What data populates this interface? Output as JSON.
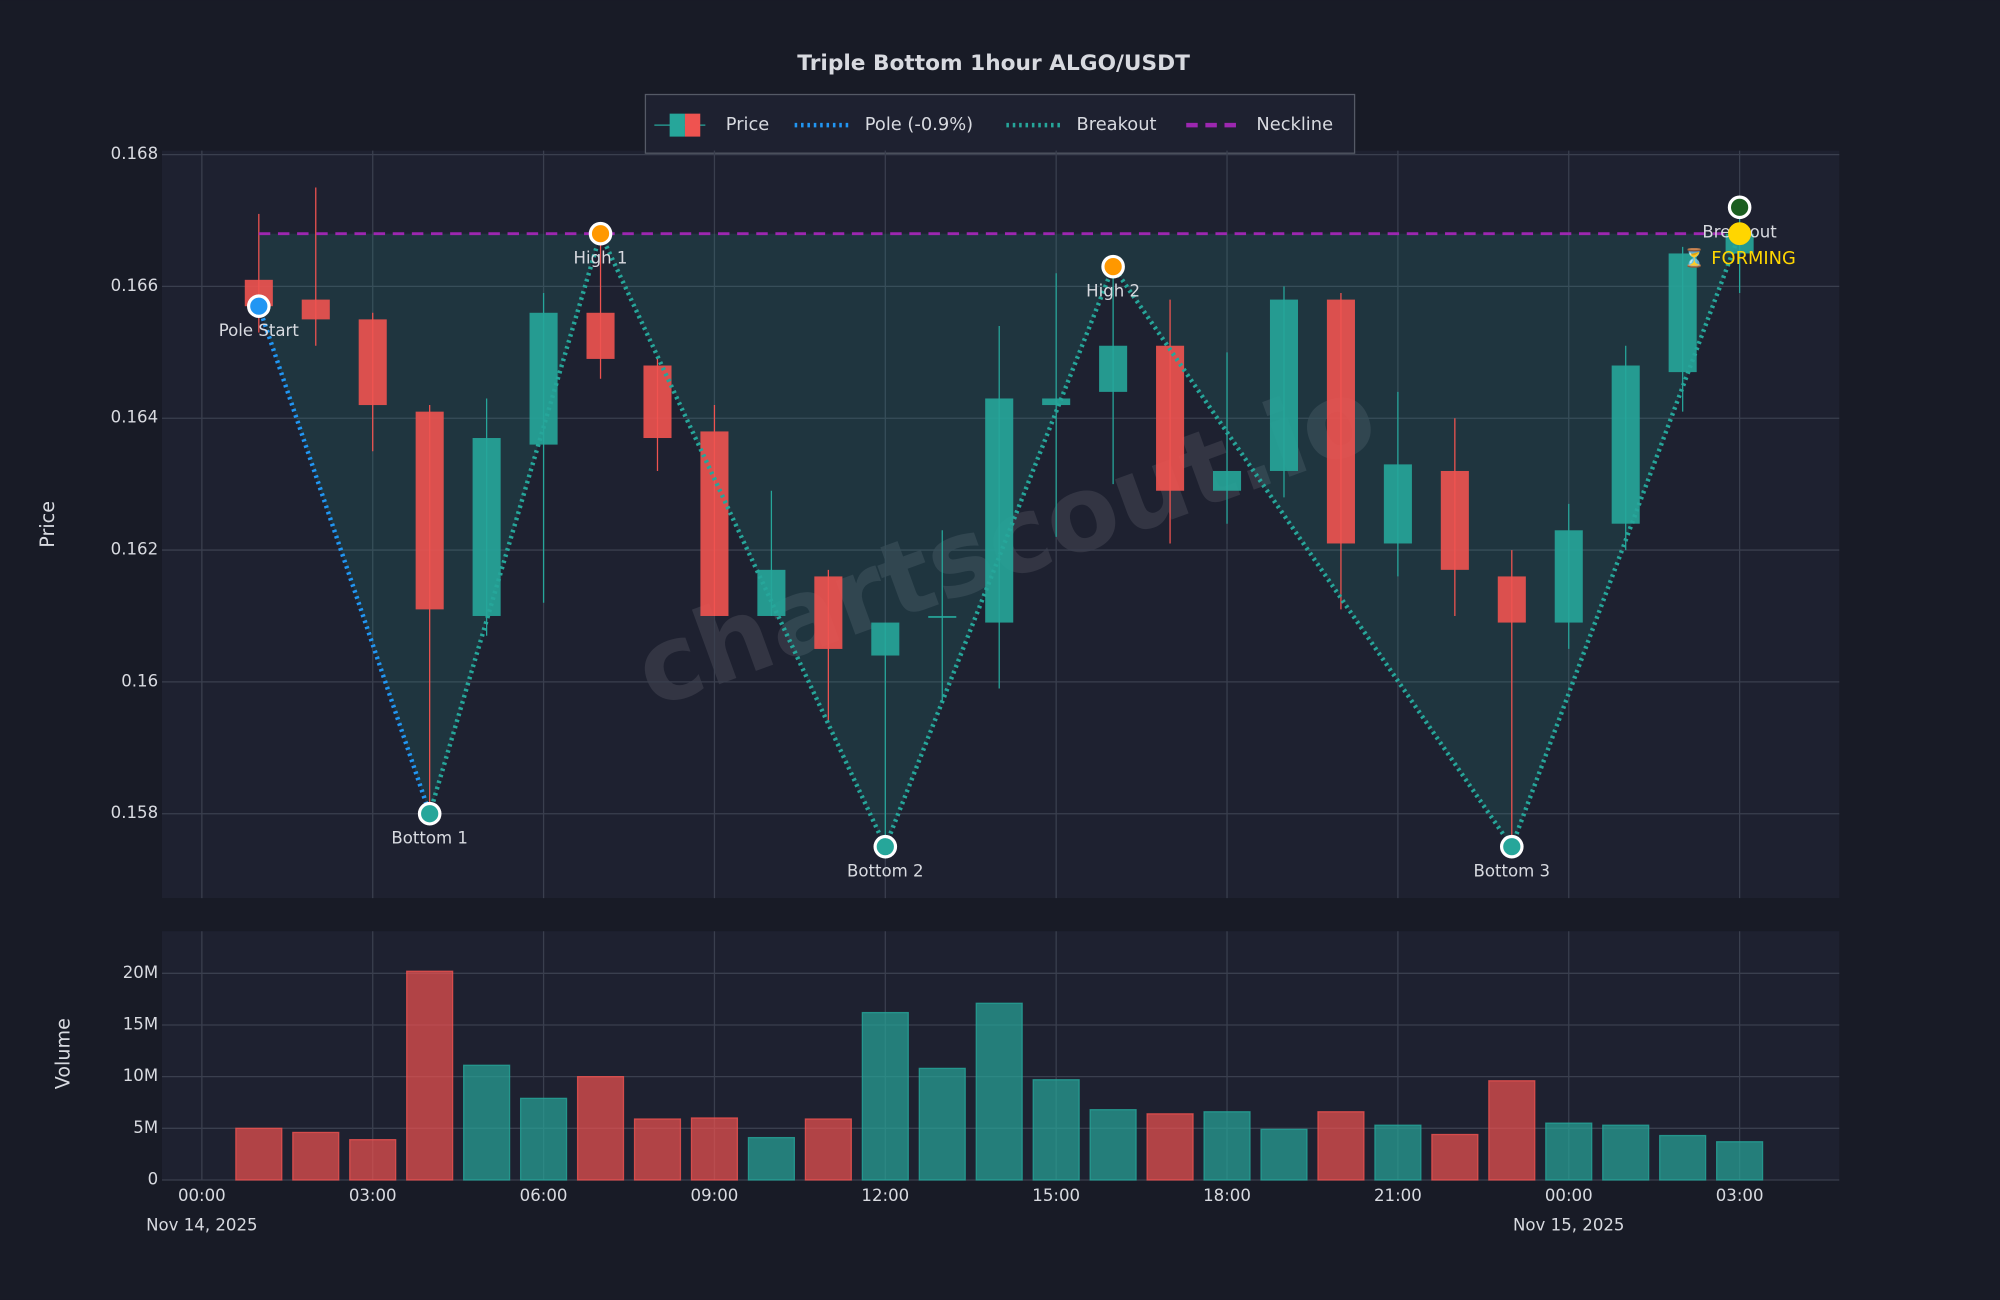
{
  "chart_data": [
    {
      "type": "candlestick",
      "title": "Triple Bottom 1hour ALGO/USDT",
      "y_label": "Price",
      "watermark": "chartscout.io",
      "x": [
        "2025-11-14T01:00",
        "2025-11-14T02:00",
        "2025-11-14T03:00",
        "2025-11-14T04:00",
        "2025-11-14T05:00",
        "2025-11-14T06:00",
        "2025-11-14T07:00",
        "2025-11-14T08:00",
        "2025-11-14T09:00",
        "2025-11-14T10:00",
        "2025-11-14T11:00",
        "2025-11-14T12:00",
        "2025-11-14T13:00",
        "2025-11-14T14:00",
        "2025-11-14T15:00",
        "2025-11-14T16:00",
        "2025-11-14T17:00",
        "2025-11-14T18:00",
        "2025-11-14T19:00",
        "2025-11-14T20:00",
        "2025-11-14T21:00",
        "2025-11-14T22:00",
        "2025-11-14T23:00",
        "2025-11-15T00:00",
        "2025-11-15T01:00",
        "2025-11-15T02:00",
        "2025-11-15T03:00"
      ],
      "open": [
        0.1661,
        0.1658,
        0.1655,
        0.1641,
        0.161,
        0.1636,
        0.1656,
        0.1648,
        0.1638,
        0.161,
        0.1616,
        0.1604,
        0.16098,
        0.1609,
        0.1642,
        0.1644,
        0.1651,
        0.1629,
        0.1632,
        0.1658,
        0.1621,
        0.1632,
        0.1616,
        0.1609,
        0.1624,
        0.1647,
        0.1665
      ],
      "high": [
        0.1671,
        0.1675,
        0.1656,
        0.1642,
        0.1643,
        0.1659,
        0.1668,
        0.1649,
        0.1642,
        0.1629,
        0.1617,
        0.1609,
        0.1623,
        0.1654,
        0.1662,
        0.1663,
        0.1658,
        0.165,
        0.166,
        0.1659,
        0.1644,
        0.164,
        0.162,
        0.1627,
        0.1651,
        0.1666,
        0.1671
      ],
      "low": [
        0.1653,
        0.1651,
        0.1635,
        0.158,
        0.1607,
        0.1612,
        0.1646,
        0.1632,
        0.161,
        0.161,
        0.1594,
        0.1575,
        0.1597,
        0.1599,
        0.1622,
        0.163,
        0.1621,
        0.1624,
        0.1628,
        0.1611,
        0.1616,
        0.161,
        0.1575,
        0.1605,
        0.162,
        0.1641,
        0.1659
      ],
      "close": [
        0.1657,
        0.1655,
        0.1642,
        0.1611,
        0.1637,
        0.1656,
        0.1649,
        0.1637,
        0.161,
        0.1617,
        0.1605,
        0.1609,
        0.161,
        0.1643,
        0.1643,
        0.1651,
        0.1629,
        0.1632,
        0.1658,
        0.1621,
        0.1633,
        0.1617,
        0.1609,
        0.1623,
        0.1648,
        0.1665,
        0.1668
      ],
      "up_color": "#26a69a",
      "down_color": "#ef5350",
      "xlim": [
        "2025-11-13T23:18",
        "2025-11-15T04:45"
      ],
      "ylim": [
        0.15672,
        0.16806
      ],
      "yticks": [
        0.158,
        0.16,
        0.162,
        0.164,
        0.166,
        0.168
      ],
      "grid": true,
      "points": [
        {
          "label": "Pole Start",
          "x": "2025-11-14T01:00",
          "value": 0.1657,
          "color": "#2196f3"
        },
        {
          "label": "Bottom 1",
          "x": "2025-11-14T04:00",
          "value": 0.158,
          "color": "#26a69a"
        },
        {
          "label": "High 1",
          "x": "2025-11-14T07:00",
          "value": 0.1668,
          "color": "#ff9800"
        },
        {
          "label": "Bottom 2",
          "x": "2025-11-14T12:00",
          "value": 0.1575,
          "color": "#26a69a"
        },
        {
          "label": "High 2",
          "x": "2025-11-14T16:00",
          "value": 0.1663,
          "color": "#ff9800"
        },
        {
          "label": "Bottom 3",
          "x": "2025-11-14T23:00",
          "value": 0.1575,
          "color": "#26a69a"
        },
        {
          "label": "Breakout",
          "x": "2025-11-15T03:00",
          "value": 0.1672,
          "color": "#1b5e20"
        }
      ],
      "status": {
        "label": "⏳ FORMING",
        "x": "2025-11-15T03:00",
        "value": 0.1668,
        "color": "#ffd600"
      },
      "neckline": {
        "value": 0.1668,
        "x": [
          "2025-11-14T01:00",
          "2025-11-15T03:00"
        ],
        "color": "#9c27b0"
      },
      "legend": [
        {
          "name": "Price"
        },
        {
          "name": "Pole (-0.9%)",
          "color": "#2196f3"
        },
        {
          "name": "Breakout",
          "color": "#26a69a"
        },
        {
          "name": "Neckline",
          "color": "#9c27b0"
        }
      ]
    },
    {
      "type": "bar",
      "y_label": "Volume",
      "values": [
        5000000,
        4600000,
        3900000,
        20200000,
        11100000,
        7900000,
        10000000,
        5900000,
        6000000,
        4100000,
        5900000,
        16200000,
        10800000,
        17100000,
        9700000,
        6800000,
        6400000,
        6600000,
        4900000,
        6600000,
        5300000,
        4400000,
        9600000,
        5500000,
        5300000,
        4300000,
        3700000
      ],
      "xlim": [
        "2025-11-13T23:18",
        "2025-11-15T04:45"
      ],
      "ylim": [
        0,
        24070000
      ],
      "yticks": [
        0,
        {
          "value": 5000000,
          "label": "5M"
        },
        {
          "value": 10000000,
          "label": "10M"
        },
        {
          "value": 15000000,
          "label": "15M"
        },
        {
          "value": 20000000,
          "label": "20M"
        }
      ],
      "xticks": [
        {
          "value": "2025-11-14T00:00",
          "label": "00:00"
        },
        {
          "value": "2025-11-14T03:00",
          "label": "03:00"
        },
        {
          "value": "2025-11-14T06:00",
          "label": "06:00"
        },
        {
          "value": "2025-11-14T09:00",
          "label": "09:00"
        },
        {
          "value": "2025-11-14T12:00",
          "label": "12:00"
        },
        {
          "value": "2025-11-14T15:00",
          "label": "15:00"
        },
        {
          "value": "2025-11-14T18:00",
          "label": "18:00"
        },
        {
          "value": "2025-11-14T21:00",
          "label": "21:00"
        },
        {
          "value": "2025-11-15T00:00",
          "label": "00:00"
        },
        {
          "value": "2025-11-15T03:00",
          "label": "03:00"
        }
      ],
      "date_labels": [
        {
          "value": "2025-11-14T00:00",
          "label": "Nov 14, 2025"
        },
        {
          "value": "2025-11-15T00:00",
          "label": "Nov 15, 2025"
        }
      ],
      "grid": true
    }
  ]
}
